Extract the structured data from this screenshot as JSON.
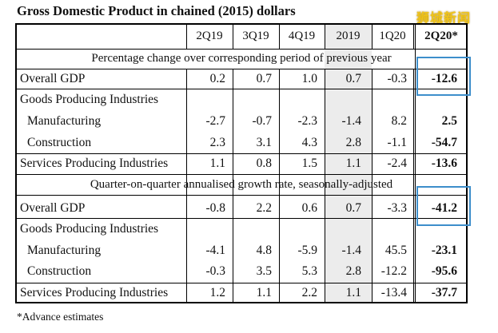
{
  "title": "Gross Domestic Product in chained (2015) dollars",
  "watermark": "狮城新闻",
  "columns": [
    "2Q19",
    "3Q19",
    "4Q19",
    "2019",
    "1Q20",
    "2Q20*"
  ],
  "section1": {
    "heading": "Percentage change over corresponding period of previous year",
    "rows": [
      {
        "label": "Overall GDP",
        "values": [
          "0.2",
          "0.7",
          "1.0",
          "0.7",
          "-0.3",
          "-12.6"
        ]
      },
      {
        "label": "Goods Producing Industries",
        "values": []
      },
      {
        "label": "Manufacturing",
        "values": [
          "-2.7",
          "-0.7",
          "-2.3",
          "-1.4",
          "8.2",
          "2.5"
        ]
      },
      {
        "label": "Construction",
        "values": [
          "2.3",
          "3.1",
          "4.3",
          "2.8",
          "-1.1",
          "-54.7"
        ]
      },
      {
        "label": "Services Producing Industries",
        "values": [
          "1.1",
          "0.8",
          "1.5",
          "1.1",
          "-2.4",
          "-13.6"
        ]
      }
    ]
  },
  "section2": {
    "heading": "Quarter-on-quarter annualised growth rate, seasonally-adjusted",
    "rows": [
      {
        "label": "Overall GDP",
        "values": [
          "-0.8",
          "2.2",
          "0.6",
          "0.7",
          "-3.3",
          "-41.2"
        ]
      },
      {
        "label": "Goods Producing Industries",
        "values": []
      },
      {
        "label": "Manufacturing",
        "values": [
          "-4.1",
          "4.8",
          "-5.9",
          "-1.4",
          "45.5",
          "-23.1"
        ]
      },
      {
        "label": "Construction",
        "values": [
          "-0.3",
          "3.5",
          "5.3",
          "2.8",
          "-12.2",
          "-95.6"
        ]
      },
      {
        "label": "Services Producing Industries",
        "values": [
          "1.2",
          "1.1",
          "2.2",
          "1.1",
          "-13.4",
          "-37.7"
        ]
      }
    ]
  },
  "footnote": "*Advance estimates",
  "colors": {
    "highlight_box": "#3d8ecb",
    "shade": "#ececec",
    "watermark": "#f0c419"
  }
}
